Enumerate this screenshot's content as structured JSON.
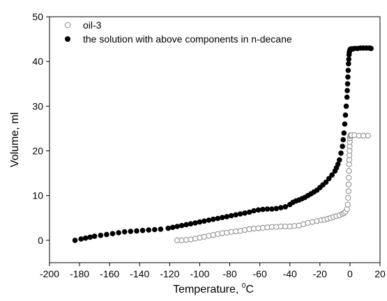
{
  "chart_data": {
    "type": "scatter",
    "xlabel": "Temperature, °C",
    "xlabel_main": "Temperature, ",
    "xlabel_sup": "0",
    "xlabel_unit": "C",
    "ylabel": "Volume, ml",
    "xlim": [
      -200,
      20
    ],
    "ylim": [
      -5,
      50
    ],
    "x_ticks": [
      -200,
      -180,
      -160,
      -140,
      -120,
      -100,
      -80,
      -60,
      -40,
      -20,
      0,
      20
    ],
    "y_ticks": [
      0,
      10,
      20,
      30,
      40,
      50
    ],
    "grid": false,
    "legend_position": "top-left",
    "series": [
      {
        "name": "oil-3",
        "marker": "open-circle",
        "color": "#888888",
        "x": [
          -115,
          -112,
          -109,
          -106,
          -103,
          -100,
          -97,
          -94,
          -91,
          -88,
          -85,
          -82,
          -79,
          -76,
          -73,
          -70,
          -67,
          -64,
          -61,
          -58,
          -55,
          -52,
          -49,
          -46,
          -43,
          -40,
          -37,
          -34,
          -31,
          -28,
          -25,
          -22,
          -19,
          -17,
          -15,
          -13,
          -11,
          -9,
          -7,
          -5,
          -4,
          -3,
          -2,
          -1.5,
          -1.2,
          -1,
          -0.9,
          -0.8,
          -0.7,
          -0.6,
          -0.5,
          -0.4,
          -0.3,
          -0.2,
          -0.1,
          0,
          0.2,
          0.4,
          0.6,
          1,
          3,
          6,
          9,
          12
        ],
        "y": [
          0,
          0,
          0.1,
          0.2,
          0.4,
          0.6,
          0.8,
          1.0,
          1.2,
          1.4,
          1.6,
          1.7,
          1.9,
          2.0,
          2.1,
          2.3,
          2.5,
          2.6,
          2.7,
          2.8,
          2.9,
          3.0,
          3.0,
          3.1,
          3.1,
          3.1,
          3.2,
          3.3,
          3.6,
          3.9,
          4.1,
          4.3,
          4.5,
          4.6,
          4.8,
          5.0,
          5.2,
          5.4,
          5.6,
          5.9,
          6.1,
          6.4,
          7.0,
          8.0,
          9.5,
          11,
          12.5,
          14,
          15.5,
          17,
          18,
          19,
          20,
          21,
          22,
          22.8,
          23.3,
          23.5,
          23.5,
          23.5,
          23.5,
          23.4,
          23.4,
          23.4
        ]
      },
      {
        "name": "the solution with above components in n-decane",
        "marker": "filled-circle",
        "color": "#000000",
        "x": [
          -183,
          -179,
          -176,
          -173,
          -170,
          -166,
          -162,
          -158,
          -154,
          -150,
          -146,
          -142,
          -138,
          -134,
          -130,
          -126,
          -121,
          -118,
          -115,
          -112,
          -109,
          -106,
          -103,
          -100,
          -97,
          -94,
          -91,
          -88,
          -85,
          -82,
          -79,
          -76,
          -73,
          -70,
          -67,
          -64,
          -61,
          -58,
          -55,
          -52,
          -49,
          -46,
          -43,
          -40,
          -38,
          -36,
          -34,
          -32,
          -30,
          -28,
          -26,
          -24,
          -22,
          -20,
          -18,
          -16,
          -14,
          -12,
          -10,
          -9,
          -8,
          -7,
          -6,
          -5,
          -4.5,
          -4,
          -3.5,
          -3,
          -2.5,
          -2,
          -1.8,
          -1.6,
          -1.4,
          -1.2,
          -1,
          -0.8,
          -0.6,
          -0.4,
          -0.2,
          0,
          0.2,
          0.5,
          1,
          2,
          3,
          5,
          7,
          9,
          11,
          13,
          14
        ],
        "y": [
          0,
          0.3,
          0.5,
          0.7,
          0.9,
          1.1,
          1.3,
          1.5,
          1.7,
          1.9,
          2.0,
          2.1,
          2.2,
          2.3,
          2.4,
          2.5,
          2.7,
          2.9,
          3.1,
          3.3,
          3.5,
          3.7,
          3.9,
          4.1,
          4.3,
          4.5,
          4.7,
          4.9,
          5.1,
          5.3,
          5.5,
          5.7,
          5.9,
          6.1,
          6.3,
          6.6,
          6.8,
          6.9,
          7.0,
          7.0,
          7.1,
          7.3,
          7.5,
          8.0,
          8.5,
          8.8,
          9.0,
          9.3,
          9.6,
          10.0,
          10.4,
          10.8,
          11.2,
          11.8,
          12.4,
          13.0,
          13.8,
          14.6,
          15.5,
          16.2,
          17.0,
          18.0,
          19.5,
          21.0,
          22.5,
          24.0,
          26.0,
          28.0,
          30.0,
          32.0,
          33.5,
          35.0,
          36.5,
          38.0,
          39.5,
          40.5,
          41.5,
          42.0,
          42.4,
          42.6,
          42.7,
          42.8,
          42.8,
          42.8,
          42.9,
          42.9,
          43.0,
          43.0,
          43.0,
          43.0,
          42.9
        ]
      }
    ]
  }
}
